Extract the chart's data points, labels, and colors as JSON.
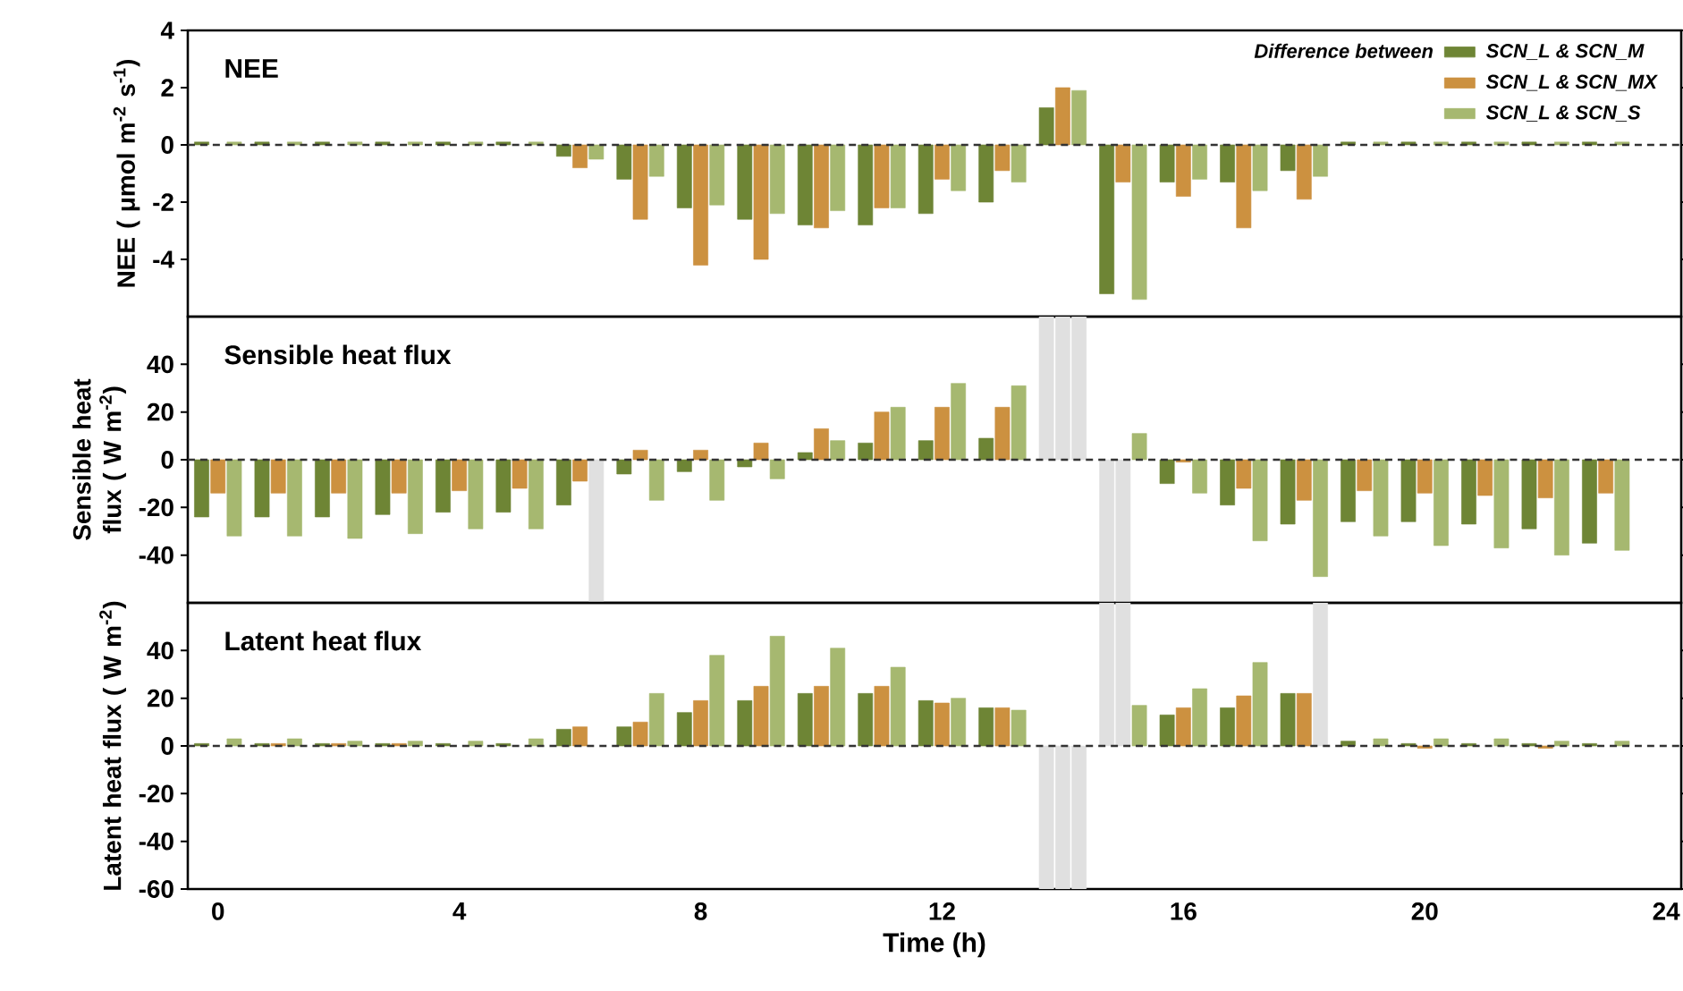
{
  "chart_data": [
    {
      "type": "bar",
      "title": "NEE",
      "ylabel": "NEE ( μmol m$^{-2}$ s$^{-1}$)",
      "legend_title": "Difference between",
      "legend": "top right",
      "tick_labels": "y",
      "x": [
        0,
        1,
        2,
        3,
        4,
        5,
        6,
        7,
        8,
        9,
        10,
        11,
        12,
        13,
        14,
        15,
        16,
        17,
        18,
        19,
        20,
        21,
        22,
        23
      ],
      "xlim": [
        -0.5,
        24.25
      ],
      "xticks": [
        0,
        4,
        8,
        12,
        16,
        20,
        24
      ],
      "ylim": [
        -6,
        4
      ],
      "yticks": [
        -4,
        -2,
        0,
        2,
        4
      ],
      "ref_lines": [
        {
          "axis": "y",
          "value": 0,
          "color": "#333333",
          "line_style": "dashed"
        }
      ],
      "series": [
        {
          "name": "SCN_L & SCN_M",
          "color": "#6e8535",
          "values": [
            0.1,
            0.1,
            0.1,
            0.1,
            0.1,
            0.1,
            -0.4,
            -1.2,
            -2.2,
            -2.6,
            -2.8,
            -2.8,
            -2.4,
            -2.0,
            1.3,
            -5.2,
            -1.3,
            -1.3,
            -0.9,
            0.1,
            0.1,
            0.1,
            0.1,
            0.1
          ]
        },
        {
          "name": "SCN_L & SCN_MX",
          "color": "#cc9140",
          "values": [
            0,
            0,
            0,
            0,
            0,
            0,
            -0.8,
            -2.6,
            -4.2,
            -4.0,
            -2.9,
            -2.2,
            -1.2,
            -0.9,
            2.0,
            -1.3,
            -1.8,
            -2.9,
            -1.9,
            0,
            0,
            0,
            0,
            0
          ]
        },
        {
          "name": "SCN_L & SCN_S",
          "color": "#a6b870",
          "values": [
            0.1,
            0.1,
            0.1,
            0.1,
            0.1,
            0.1,
            -0.5,
            -1.1,
            -2.1,
            -2.4,
            -2.3,
            -2.2,
            -1.6,
            -1.3,
            1.9,
            -5.4,
            -1.2,
            -1.6,
            -1.1,
            0.1,
            0.1,
            0.1,
            0.1,
            0.1
          ]
        }
      ]
    },
    {
      "type": "bar",
      "title": "Sensible heat flux",
      "ylabel": "Sensible heat flux ( W m$^{-2}$)",
      "tick_labels": "y",
      "x": [
        0,
        1,
        2,
        3,
        4,
        5,
        6,
        7,
        8,
        9,
        10,
        11,
        12,
        13,
        14,
        15,
        16,
        17,
        18,
        19,
        20,
        21,
        22,
        23
      ],
      "xlim": [
        -0.5,
        24.25
      ],
      "xticks": [
        0,
        4,
        8,
        12,
        16,
        20,
        24
      ],
      "ylim": [
        -60,
        60
      ],
      "yticks": [
        -40,
        -20,
        0,
        20,
        40
      ],
      "ref_lines": [
        {
          "axis": "y",
          "value": 0,
          "color": "#333333",
          "line_style": "dashed"
        }
      ],
      "series": [
        {
          "values": [
            -24,
            -24,
            -24,
            -23,
            -22,
            -22,
            -19,
            -6,
            -5,
            -3,
            3,
            7,
            8,
            9,
            60,
            -60,
            -10,
            -19,
            -27,
            -26,
            -26,
            -27,
            -29,
            -35
          ],
          "colors": [
            "#6e8535",
            "#6e8535",
            "#6e8535",
            "#6e8535",
            "#6e8535",
            "#6e8535",
            "#6e8535",
            "#6e8535",
            "#6e8535",
            "#6e8535",
            "#6e8535",
            "#6e8535",
            "#6e8535",
            "#6e8535",
            "#e0e0e0",
            "#e0e0e0",
            "#6e8535",
            "#6e8535",
            "#6e8535",
            "#6e8535",
            "#6e8535",
            "#6e8535",
            "#6e8535",
            "#6e8535"
          ]
        },
        {
          "values": [
            -14,
            -14,
            -14,
            -14,
            -13,
            -12,
            -9,
            4,
            4,
            7,
            13,
            20,
            22,
            22,
            60,
            -60,
            -1,
            -12,
            -17,
            -13,
            -14,
            -15,
            -16,
            -14
          ],
          "colors": [
            "#cc9140",
            "#cc9140",
            "#cc9140",
            "#cc9140",
            "#cc9140",
            "#cc9140",
            "#cc9140",
            "#cc9140",
            "#cc9140",
            "#cc9140",
            "#cc9140",
            "#cc9140",
            "#cc9140",
            "#cc9140",
            "#e0e0e0",
            "#e0e0e0",
            "#cc9140",
            "#cc9140",
            "#cc9140",
            "#cc9140",
            "#cc9140",
            "#cc9140",
            "#cc9140",
            "#cc9140"
          ]
        },
        {
          "values": [
            -32,
            -32,
            -33,
            -31,
            -29,
            -29,
            -60,
            -17,
            -17,
            -8,
            8,
            22,
            32,
            31,
            60,
            11,
            -14,
            -34,
            -49,
            -32,
            -36,
            -37,
            -40,
            -38
          ],
          "colors": [
            "#a6b870",
            "#a6b870",
            "#a6b870",
            "#a6b870",
            "#a6b870",
            "#a6b870",
            "#e0e0e0",
            "#a6b870",
            "#a6b870",
            "#a6b870",
            "#a6b870",
            "#a6b870",
            "#a6b870",
            "#a6b870",
            "#e0e0e0",
            "#a6b870",
            "#a6b870",
            "#a6b870",
            "#a6b870",
            "#a6b870",
            "#a6b870",
            "#a6b870",
            "#a6b870",
            "#a6b870"
          ]
        }
      ]
    },
    {
      "type": "bar",
      "title": "Latent heat flux",
      "ylabel": "Latent heat flux ( W m$^{-2}$)",
      "xlabel": "Time (h)",
      "x": [
        0,
        1,
        2,
        3,
        4,
        5,
        6,
        7,
        8,
        9,
        10,
        11,
        12,
        13,
        14,
        15,
        16,
        17,
        18,
        19,
        20,
        21,
        22,
        23
      ],
      "xlim": [
        -0.5,
        24.25
      ],
      "xticks": [
        0,
        4,
        8,
        12,
        16,
        20,
        24
      ],
      "ylim": [
        -60,
        60
      ],
      "yticks": [
        -60,
        -40,
        -20,
        0,
        20,
        40
      ],
      "ref_lines": [
        {
          "axis": "y",
          "value": 0,
          "color": "#333333",
          "line_style": "dashed"
        }
      ],
      "series": [
        {
          "values": [
            1,
            1,
            1,
            1,
            1,
            1,
            7,
            8,
            14,
            19,
            22,
            22,
            19,
            16,
            -60,
            60,
            13,
            16,
            22,
            2,
            1,
            1,
            1,
            1
          ],
          "colors": [
            "#6e8535",
            "#6e8535",
            "#6e8535",
            "#6e8535",
            "#6e8535",
            "#6e8535",
            "#6e8535",
            "#6e8535",
            "#6e8535",
            "#6e8535",
            "#6e8535",
            "#6e8535",
            "#6e8535",
            "#6e8535",
            "#e0e0e0",
            "#e0e0e0",
            "#6e8535",
            "#6e8535",
            "#6e8535",
            "#6e8535",
            "#6e8535",
            "#6e8535",
            "#6e8535",
            "#6e8535"
          ]
        },
        {
          "values": [
            0,
            1,
            1,
            1,
            0,
            0,
            8,
            10,
            19,
            25,
            25,
            25,
            18,
            16,
            -60,
            60,
            16,
            21,
            22,
            0,
            -1,
            0,
            -1,
            0
          ],
          "colors": [
            "#cc9140",
            "#cc9140",
            "#cc9140",
            "#cc9140",
            "#cc9140",
            "#cc9140",
            "#cc9140",
            "#cc9140",
            "#cc9140",
            "#cc9140",
            "#cc9140",
            "#cc9140",
            "#cc9140",
            "#cc9140",
            "#e0e0e0",
            "#e0e0e0",
            "#cc9140",
            "#cc9140",
            "#cc9140",
            "#cc9140",
            "#cc9140",
            "#cc9140",
            "#cc9140",
            "#cc9140"
          ]
        },
        {
          "values": [
            3,
            3,
            2,
            2,
            2,
            3,
            0,
            22,
            38,
            46,
            41,
            33,
            20,
            15,
            -60,
            17,
            24,
            35,
            60,
            3,
            3,
            3,
            2,
            2
          ],
          "colors": [
            "#a6b870",
            "#a6b870",
            "#a6b870",
            "#a6b870",
            "#a6b870",
            "#a6b870",
            "#a6b870",
            "#a6b870",
            "#a6b870",
            "#a6b870",
            "#a6b870",
            "#a6b870",
            "#a6b870",
            "#a6b870",
            "#e0e0e0",
            "#a6b870",
            "#a6b870",
            "#a6b870",
            "#e0e0e0",
            "#a6b870",
            "#a6b870",
            "#a6b870",
            "#a6b870",
            "#a6b870"
          ]
        }
      ]
    }
  ]
}
